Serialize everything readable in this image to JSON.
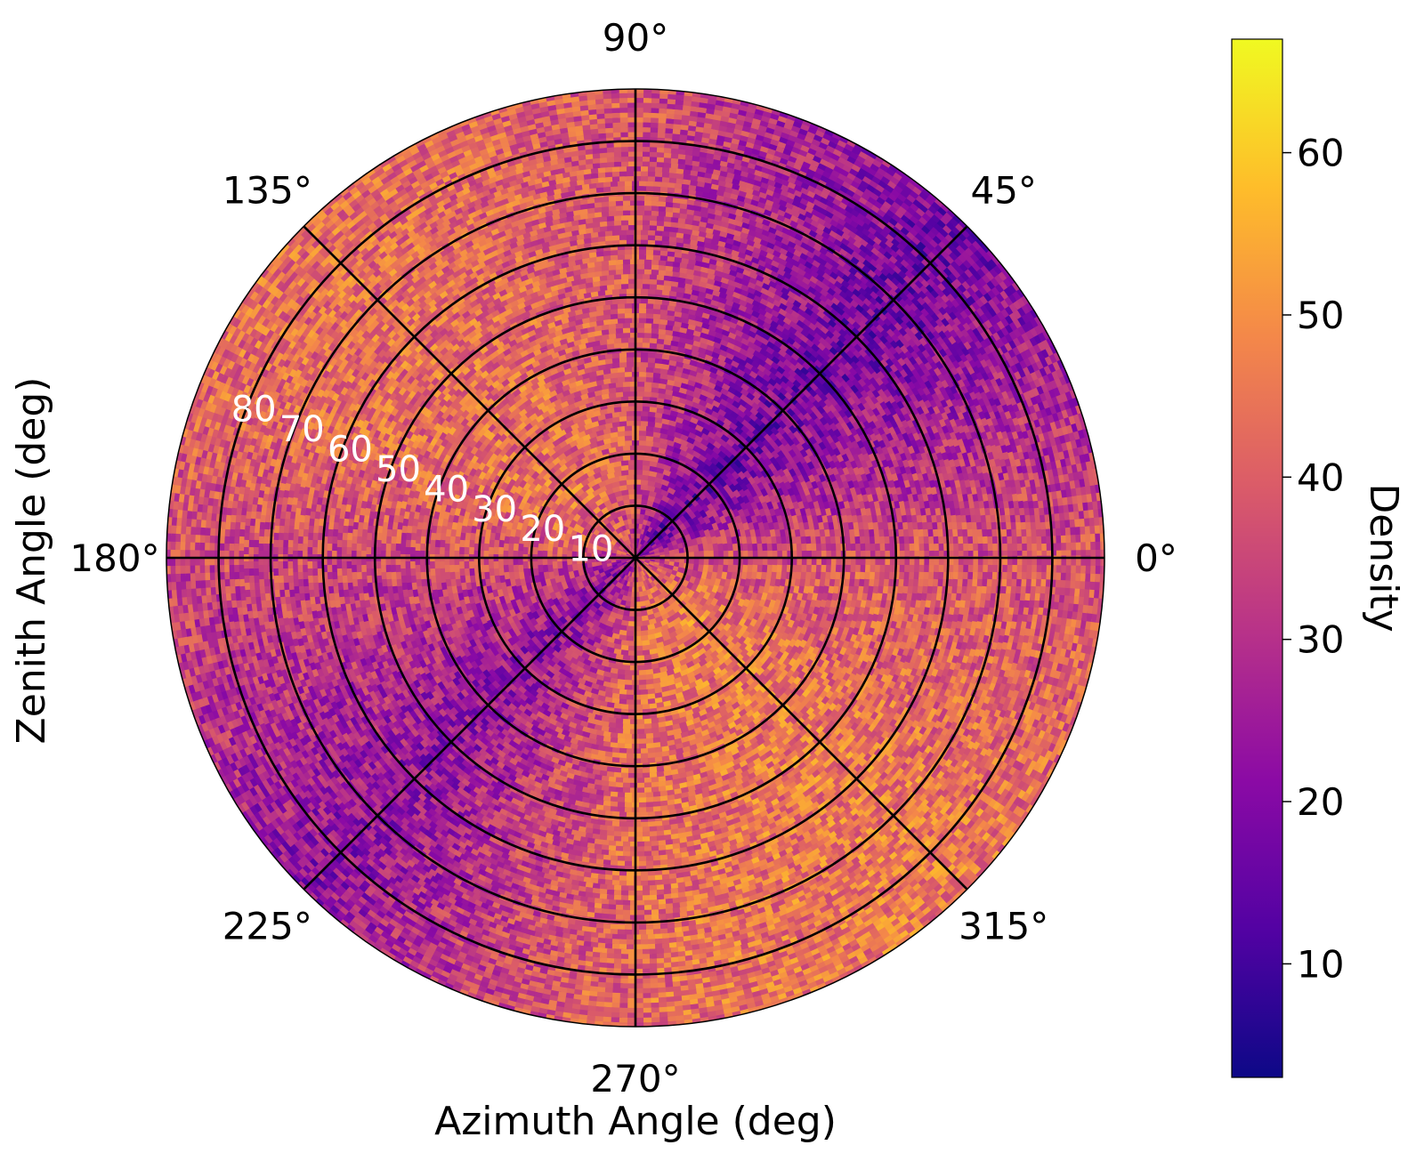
{
  "chart_data": {
    "type": "heatmap",
    "projection": "polar",
    "xlabel": "Azimuth Angle (deg)",
    "ylabel": "Zenith Angle (deg)",
    "colorbar_label": "Density",
    "colormap": "plasma",
    "colormap_stops": [
      "#0d0887",
      "#5302a3",
      "#8b0aa5",
      "#b83289",
      "#db5c68",
      "#f48849",
      "#febd2a",
      "#f0f921"
    ],
    "value_range": [
      3,
      67
    ],
    "colorbar_ticks": [
      10,
      20,
      30,
      40,
      50,
      60
    ],
    "azimuth_ticks": [
      "0°",
      "45°",
      "90°",
      "135°",
      "180°",
      "225°",
      "270°",
      "315°"
    ],
    "azimuth_tick_degrees": [
      0,
      45,
      90,
      135,
      180,
      225,
      270,
      315
    ],
    "zenith_ticks": [
      "10",
      "20",
      "30",
      "40",
      "50",
      "60",
      "70",
      "80"
    ],
    "zenith_tick_values": [
      10,
      20,
      30,
      40,
      50,
      60,
      70,
      80
    ],
    "zenith_range": [
      0,
      90
    ],
    "grid": true,
    "density_pattern": {
      "description_values": [
        {
          "azimuth_deg": 0,
          "density": 38
        },
        {
          "azimuth_deg": 22,
          "density": 28
        },
        {
          "azimuth_deg": 45,
          "density": 17
        },
        {
          "azimuth_deg": 67,
          "density": 27
        },
        {
          "azimuth_deg": 90,
          "density": 38
        },
        {
          "azimuth_deg": 112,
          "density": 42
        },
        {
          "azimuth_deg": 135,
          "density": 44
        },
        {
          "azimuth_deg": 157,
          "density": 43
        },
        {
          "azimuth_deg": 180,
          "density": 36
        },
        {
          "azimuth_deg": 202,
          "density": 30
        },
        {
          "azimuth_deg": 225,
          "density": 22
        },
        {
          "azimuth_deg": 247,
          "density": 33
        },
        {
          "azimuth_deg": 270,
          "density": 43
        },
        {
          "azimuth_deg": 292,
          "density": 45
        },
        {
          "azimuth_deg": 315,
          "density": 46
        },
        {
          "azimuth_deg": 337,
          "density": 42
        }
      ]
    }
  }
}
